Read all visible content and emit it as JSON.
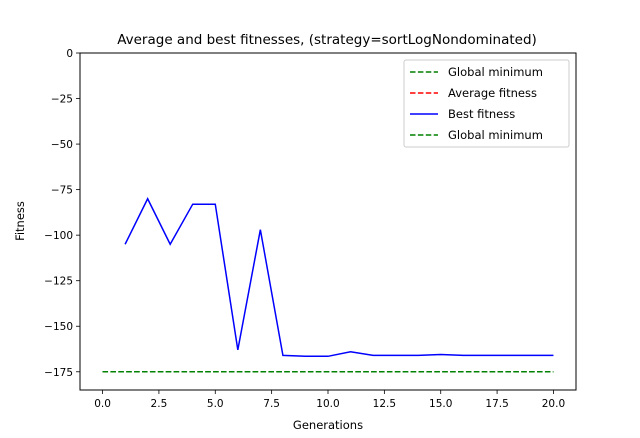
{
  "chart_data": {
    "type": "line",
    "title": "Average and best fitnesses, (strategy=sortLogNondominated)",
    "xlabel": "Generations",
    "ylabel": "Fitness",
    "xlim": [
      -1.0,
      21.0
    ],
    "ylim": [
      -185,
      0
    ],
    "xticks": [
      0.0,
      2.5,
      5.0,
      7.5,
      10.0,
      12.5,
      15.0,
      17.5,
      20.0
    ],
    "xtick_labels": [
      "0.0",
      "2.5",
      "5.0",
      "7.5",
      "10.0",
      "12.5",
      "15.0",
      "17.5",
      "20.0"
    ],
    "yticks": [
      0,
      -25,
      -50,
      -75,
      -100,
      -125,
      -150,
      -175
    ],
    "ytick_labels": [
      "0",
      "−25",
      "−50",
      "−75",
      "−100",
      "−125",
      "−150",
      "−175"
    ],
    "grid": false,
    "legend_position": "top-right",
    "series": [
      {
        "name": "Global minimum",
        "style": "dashed",
        "color": "#008000",
        "x": [
          0,
          20
        ],
        "y": [
          -175,
          -175
        ]
      },
      {
        "name": "Average fitness",
        "style": "dashed",
        "color": "#ff0000",
        "x": [],
        "y": []
      },
      {
        "name": "Best fitness",
        "style": "solid",
        "color": "#0000ff",
        "x": [
          1,
          2,
          3,
          4,
          5,
          6,
          7,
          8,
          9,
          10,
          11,
          12,
          13,
          14,
          15,
          16,
          17,
          18,
          19,
          20
        ],
        "y": [
          -105,
          -80,
          -105,
          -83,
          -83,
          -163,
          -97,
          -166,
          -166.5,
          -166.5,
          -164,
          -166,
          -166,
          -166,
          -165.5,
          -166,
          -166,
          -166,
          -166,
          -166
        ]
      },
      {
        "name": "Global minimum",
        "style": "dashed",
        "color": "#008000",
        "x": [
          0,
          20
        ],
        "y": [
          -175,
          -175
        ]
      }
    ]
  }
}
